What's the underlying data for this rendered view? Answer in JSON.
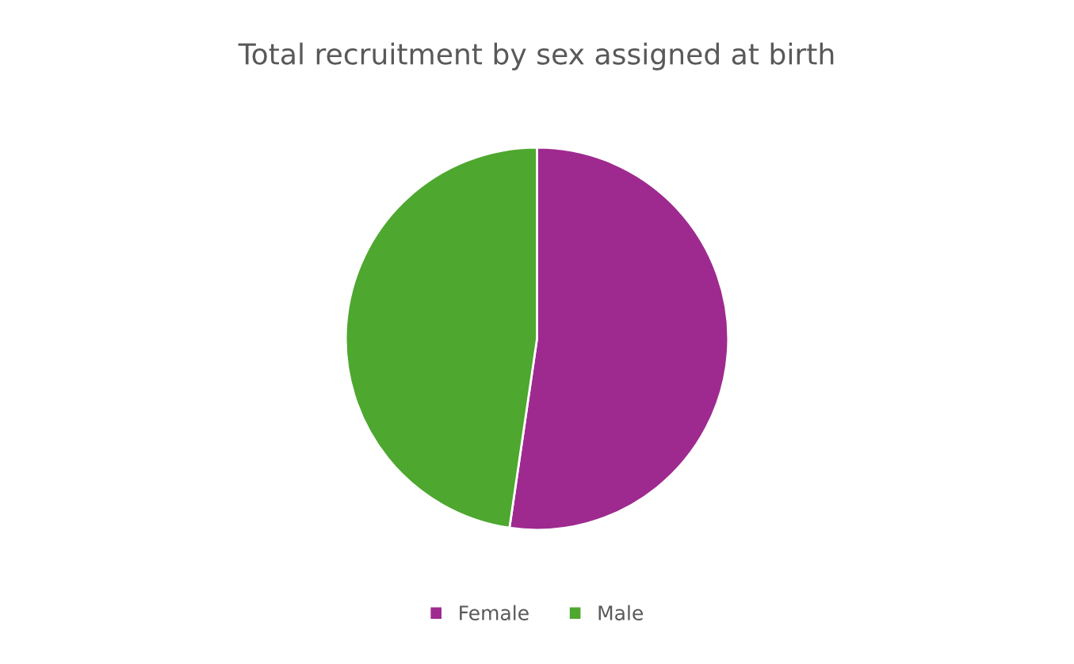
{
  "chart_data": {
    "type": "pie",
    "title": "Total recruitment by sex assigned at birth",
    "categories": [
      "Female",
      "Male"
    ],
    "values": [
      52.3,
      47.7
    ],
    "colors": [
      "#9e2a8f",
      "#4ea72e"
    ],
    "legend": "bottom"
  }
}
